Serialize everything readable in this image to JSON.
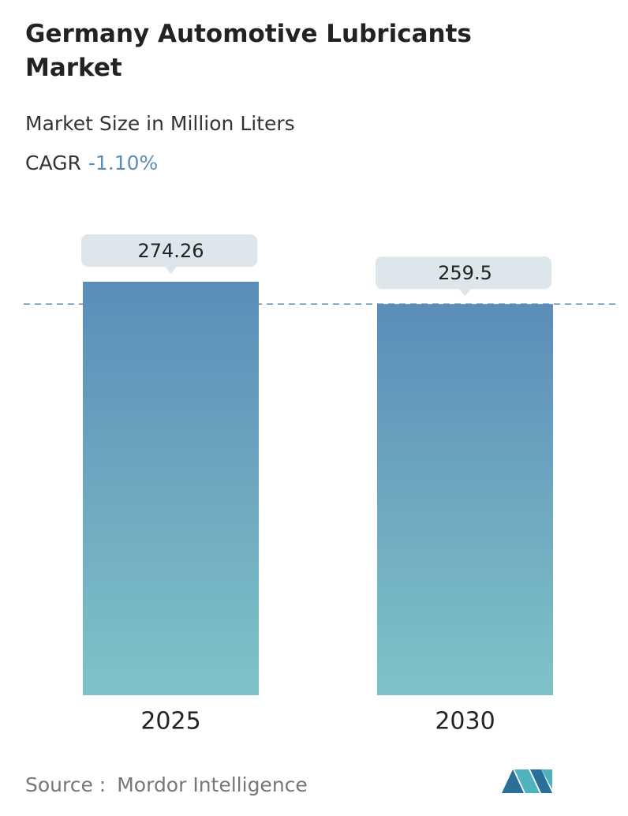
{
  "chart_data": {
    "type": "bar",
    "title": "Germany Automotive Lubricants Market",
    "subtitle": "Market Size in Million Liters",
    "cagr_label": "CAGR",
    "cagr_value": "-1.10%",
    "categories": [
      "2025",
      "2030"
    ],
    "values": [
      274.26,
      259.5
    ],
    "source_label": "Source :",
    "source": "Mordor Intelligence"
  }
}
